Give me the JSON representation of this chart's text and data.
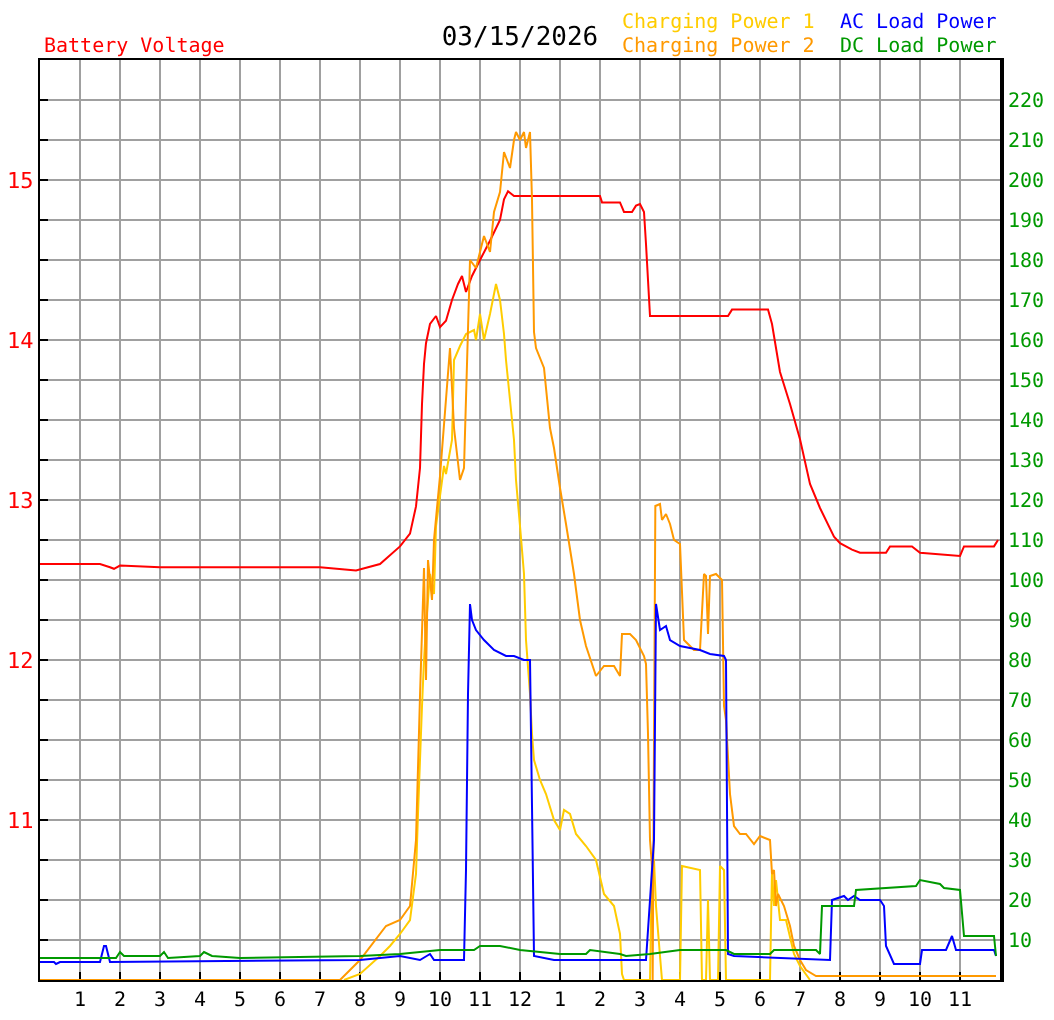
{
  "chart_data": {
    "type": "line",
    "title": "03/15/2026",
    "ylabel": "Battery Voltage",
    "xlim": [
      "2026-03-15T00:00",
      "2026-03-16T00:00"
    ],
    "xticks": [
      {
        "value": "2026-03-15T01:00",
        "label": "1"
      },
      {
        "value": "2026-03-15T02:00",
        "label": "2"
      },
      {
        "value": "2026-03-15T03:00",
        "label": "3"
      },
      {
        "value": "2026-03-15T04:00",
        "label": "4"
      },
      {
        "value": "2026-03-15T05:00",
        "label": "5"
      },
      {
        "value": "2026-03-15T06:00",
        "label": "6"
      },
      {
        "value": "2026-03-15T07:00",
        "label": "7"
      },
      {
        "value": "2026-03-15T08:00",
        "label": "8"
      },
      {
        "value": "2026-03-15T09:00",
        "label": "9"
      },
      {
        "value": "2026-03-15T10:00",
        "label": "10"
      },
      {
        "value": "2026-03-15T11:00",
        "label": "11"
      },
      {
        "value": "2026-03-15T12:00",
        "label": "12"
      },
      {
        "value": "2026-03-15T13:00",
        "label": "1"
      },
      {
        "value": "2026-03-15T14:00",
        "label": "2"
      },
      {
        "value": "2026-03-15T15:00",
        "label": "3"
      },
      {
        "value": "2026-03-15T16:00",
        "label": "4"
      },
      {
        "value": "2026-03-15T17:00",
        "label": "5"
      },
      {
        "value": "2026-03-15T18:00",
        "label": "6"
      },
      {
        "value": "2026-03-15T19:00",
        "label": "7"
      },
      {
        "value": "2026-03-15T20:00",
        "label": "8"
      },
      {
        "value": "2026-03-15T21:00",
        "label": "9"
      },
      {
        "value": "2026-03-15T22:00",
        "label": "10"
      },
      {
        "value": "2026-03-15T23:00",
        "label": "11"
      }
    ],
    "ylim": [
      10,
      15.75
    ],
    "yticks": [
      {
        "value": 10.25,
        "label": null
      },
      {
        "value": 10.5,
        "label": null
      },
      {
        "value": 10.75,
        "label": null
      },
      11,
      {
        "value": 11.25,
        "label": null
      },
      {
        "value": 11.5,
        "label": null
      },
      {
        "value": 11.75,
        "label": null
      },
      12,
      {
        "value": 12.25,
        "label": null
      },
      {
        "value": 12.5,
        "label": null
      },
      {
        "value": 12.75,
        "label": null
      },
      13,
      {
        "value": 13.25,
        "label": null
      },
      {
        "value": 13.5,
        "label": null
      },
      {
        "value": 13.75,
        "label": null
      },
      14,
      {
        "value": 14.25,
        "label": null
      },
      {
        "value": 14.5,
        "label": null
      },
      {
        "value": 14.75,
        "label": null
      },
      15,
      {
        "value": 15.25,
        "label": null
      },
      {
        "value": 15.5,
        "label": null
      }
    ],
    "y2lim": [
      0,
      230
    ],
    "y2ticks": [
      10,
      20,
      30,
      40,
      50,
      60,
      70,
      80,
      90,
      100,
      110,
      120,
      130,
      140,
      150,
      160,
      170,
      180,
      190,
      200,
      210,
      220
    ],
    "grid": true,
    "legend": "top right",
    "series": [
      {
        "color": "#ff0000",
        "axis": "y",
        "x": [
          "2026-03-15T00:00",
          "2026-03-15T01:30",
          "2026-03-15T01:45",
          "2026-03-15T01:51",
          "2026-03-15T02:00",
          "2026-03-15T03:00",
          "2026-03-15T07:00",
          "2026-03-15T07:54",
          "2026-03-15T08:30",
          "2026-03-15T09:00",
          "2026-03-15T09:15",
          "2026-03-15T09:24",
          "2026-03-15T09:30",
          "2026-03-15T09:33",
          "2026-03-15T09:36",
          "2026-03-15T09:39",
          "2026-03-15T09:45",
          "2026-03-15T09:54",
          "2026-03-15T10:00",
          "2026-03-15T10:09",
          "2026-03-15T10:18",
          "2026-03-15T10:27",
          "2026-03-15T10:33",
          "2026-03-15T10:39",
          "2026-03-15T10:48",
          "2026-03-15T11:00",
          "2026-03-15T11:15",
          "2026-03-15T11:30",
          "2026-03-15T11:36",
          "2026-03-15T11:42",
          "2026-03-15T11:51",
          "2026-03-15T14:00",
          "2026-03-15T14:03",
          "2026-03-15T14:30",
          "2026-03-15T14:36",
          "2026-03-15T14:48",
          "2026-03-15T14:54",
          "2026-03-15T15:00",
          "2026-03-15T15:06",
          "2026-03-15T15:09",
          "2026-03-15T15:15",
          "2026-03-15T17:12",
          "2026-03-15T17:18",
          "2026-03-15T18:12",
          "2026-03-15T18:18",
          "2026-03-15T18:30",
          "2026-03-15T18:45",
          "2026-03-15T19:00",
          "2026-03-15T19:15",
          "2026-03-15T19:30",
          "2026-03-15T19:51",
          "2026-03-15T20:00",
          "2026-03-15T20:18",
          "2026-03-15T20:30",
          "2026-03-15T21:09",
          "2026-03-15T21:15",
          "2026-03-15T21:48",
          "2026-03-15T22:00",
          "2026-03-15T23:00",
          "2026-03-15T23:06",
          "2026-03-15T23:51",
          "2026-03-15T23:57"
        ],
        "values": [
          12.6,
          12.6,
          12.58,
          12.57,
          12.59,
          12.58,
          12.58,
          12.56,
          12.6,
          12.71,
          12.79,
          12.96,
          13.2,
          13.6,
          13.85,
          13.98,
          14.1,
          14.15,
          14.08,
          14.12,
          14.25,
          14.35,
          14.4,
          14.3,
          14.4,
          14.5,
          14.62,
          14.75,
          14.88,
          14.93,
          14.9,
          14.9,
          14.86,
          14.86,
          14.8,
          14.8,
          14.84,
          14.85,
          14.8,
          14.6,
          14.15,
          14.15,
          14.19,
          14.19,
          14.1,
          13.8,
          13.6,
          13.38,
          13.1,
          12.95,
          12.77,
          12.73,
          12.69,
          12.67,
          12.67,
          12.71,
          12.71,
          12.67,
          12.65,
          12.71,
          12.71,
          12.75
        ]
      },
      {
        "name": "Charging Power 1",
        "color": "#ffcc00",
        "axis": "y2",
        "x": [
          "2026-03-15T07:36",
          "2026-03-15T08:00",
          "2026-03-15T08:30",
          "2026-03-15T08:45",
          "2026-03-15T09:00",
          "2026-03-15T09:15",
          "2026-03-15T09:24",
          "2026-03-15T09:27",
          "2026-03-15T09:33",
          "2026-03-15T09:36",
          "2026-03-15T09:39",
          "2026-03-15T09:45",
          "2026-03-15T09:51",
          "2026-03-15T09:54",
          "2026-03-15T10:06",
          "2026-03-15T10:09",
          "2026-03-15T10:18",
          "2026-03-15T10:21",
          "2026-03-15T10:30",
          "2026-03-15T10:39",
          "2026-03-15T10:51",
          "2026-03-15T10:54",
          "2026-03-15T11:00",
          "2026-03-15T11:06",
          "2026-03-15T11:15",
          "2026-03-15T11:21",
          "2026-03-15T11:24",
          "2026-03-15T11:30",
          "2026-03-15T11:36",
          "2026-03-15T11:39",
          "2026-03-15T11:45",
          "2026-03-15T11:51",
          "2026-03-15T11:54",
          "2026-03-15T12:00",
          "2026-03-15T12:06",
          "2026-03-15T12:09",
          "2026-03-15T12:15",
          "2026-03-15T12:18",
          "2026-03-15T12:21",
          "2026-03-15T12:30",
          "2026-03-15T12:39",
          "2026-03-15T12:51",
          "2026-03-15T13:00",
          "2026-03-15T13:06",
          "2026-03-15T13:15",
          "2026-03-15T13:24",
          "2026-03-15T13:39",
          "2026-03-15T13:54",
          "2026-03-15T14:06",
          "2026-03-15T14:21",
          "2026-03-15T14:30",
          "2026-03-15T14:33",
          "2026-03-15T14:36",
          "2026-03-15T15:15",
          "2026-03-15T15:18",
          "2026-03-15T15:21",
          "2026-03-15T15:24",
          "2026-03-15T15:30",
          "2026-03-15T15:33",
          "2026-03-15T16:00",
          "2026-03-15T16:03",
          "2026-03-15T16:30",
          "2026-03-15T16:33",
          "2026-03-15T16:39",
          "2026-03-15T16:42",
          "2026-03-15T16:45",
          "2026-03-15T16:57",
          "2026-03-15T17:00",
          "2026-03-15T17:06",
          "2026-03-15T17:09",
          "2026-03-15T18:15",
          "2026-03-15T18:18",
          "2026-03-15T18:21",
          "2026-03-15T18:24",
          "2026-03-15T18:30",
          "2026-03-15T18:39",
          "2026-03-15T18:51",
          "2026-03-15T19:00",
          "2026-03-15T19:15"
        ],
        "values": [
          0,
          1.5,
          6,
          8.5,
          11.5,
          15,
          26.5,
          41.5,
          68.5,
          80,
          88.5,
          101.5,
          96.5,
          113.5,
          128.5,
          126.5,
          135,
          155,
          158.5,
          161.5,
          162.5,
          160,
          166.5,
          160,
          166.5,
          171.5,
          174,
          170,
          161.5,
          155,
          145,
          135,
          125,
          113.5,
          101.5,
          85,
          71.5,
          61.5,
          55,
          50,
          46.5,
          40,
          37.5,
          42.5,
          41.5,
          36.5,
          33.5,
          30,
          21.5,
          18.5,
          11.5,
          1.5,
          0,
          0,
          30,
          30,
          18.5,
          6,
          0,
          0,
          28.5,
          27.5,
          0,
          0,
          20,
          0,
          0,
          28.5,
          27.5,
          0,
          0,
          27.5,
          18.5,
          25,
          15,
          15,
          6.5,
          3.5,
          0
        ]
      },
      {
        "name": "Charging Power 2",
        "color": "#ff9900",
        "axis": "y2",
        "x": [
          "2026-03-15T00:00",
          "2026-03-15T07:30",
          "2026-03-15T08:00",
          "2026-03-15T08:39",
          "2026-03-15T09:00",
          "2026-03-15T09:15",
          "2026-03-15T09:24",
          "2026-03-15T09:30",
          "2026-03-15T09:36",
          "2026-03-15T09:39",
          "2026-03-15T09:42",
          "2026-03-15T09:48",
          "2026-03-15T09:51",
          "2026-03-15T10:00",
          "2026-03-15T10:15",
          "2026-03-15T10:21",
          "2026-03-15T10:30",
          "2026-03-15T10:36",
          "2026-03-15T10:45",
          "2026-03-15T10:54",
          "2026-03-15T11:06",
          "2026-03-15T11:15",
          "2026-03-15T11:21",
          "2026-03-15T11:30",
          "2026-03-15T11:36",
          "2026-03-15T11:45",
          "2026-03-15T11:51",
          "2026-03-15T11:54",
          "2026-03-15T12:00",
          "2026-03-15T12:06",
          "2026-03-15T12:09",
          "2026-03-15T12:15",
          "2026-03-15T12:18",
          "2026-03-15T12:21",
          "2026-03-15T12:24",
          "2026-03-15T12:36",
          "2026-03-15T12:45",
          "2026-03-15T12:51",
          "2026-03-15T13:00",
          "2026-03-15T13:09",
          "2026-03-15T13:21",
          "2026-03-15T13:30",
          "2026-03-15T13:39",
          "2026-03-15T13:54",
          "2026-03-15T14:06",
          "2026-03-15T14:21",
          "2026-03-15T14:30",
          "2026-03-15T14:33",
          "2026-03-15T14:45",
          "2026-03-15T14:54",
          "2026-03-15T15:06",
          "2026-03-15T15:09",
          "2026-03-15T15:12",
          "2026-03-15T15:15",
          "2026-03-15T15:18",
          "2026-03-15T15:19",
          "2026-03-15T15:23",
          "2026-03-15T15:30",
          "2026-03-15T15:33",
          "2026-03-15T15:39",
          "2026-03-15T15:45",
          "2026-03-15T15:51",
          "2026-03-15T16:00",
          "2026-03-15T16:06",
          "2026-03-15T16:21",
          "2026-03-15T16:30",
          "2026-03-15T16:36",
          "2026-03-15T16:39",
          "2026-03-15T16:42",
          "2026-03-15T16:45",
          "2026-03-15T16:54",
          "2026-03-15T17:03",
          "2026-03-15T17:06",
          "2026-03-15T17:09",
          "2026-03-15T17:15",
          "2026-03-15T17:21",
          "2026-03-15T17:30",
          "2026-03-15T17:39",
          "2026-03-15T17:51",
          "2026-03-15T18:00",
          "2026-03-15T18:15",
          "2026-03-15T18:18",
          "2026-03-15T18:21",
          "2026-03-15T18:24",
          "2026-03-15T18:27",
          "2026-03-15T18:36",
          "2026-03-15T18:45",
          "2026-03-15T18:51",
          "2026-03-15T19:00",
          "2026-03-15T19:09",
          "2026-03-15T19:24",
          "2026-03-15T23:54"
        ],
        "values": [
          0,
          0,
          5,
          13.5,
          15,
          18.5,
          35,
          71,
          103,
          75,
          105,
          95,
          110,
          126,
          158,
          138,
          125,
          128,
          180,
          178,
          186,
          182,
          192,
          197,
          207,
          203,
          210,
          212,
          210,
          212,
          208,
          212,
          195,
          162,
          158,
          153,
          138,
          133,
          123,
          114,
          101.5,
          90,
          83.5,
          76,
          78.5,
          78.5,
          76,
          86.5,
          86.5,
          85,
          81,
          79,
          61.5,
          35,
          28.5,
          0,
          118.5,
          119,
          115,
          116.5,
          114,
          110,
          109,
          85,
          82.5,
          82.5,
          101.5,
          101,
          86.5,
          101,
          101.5,
          100,
          68.5,
          65,
          46.5,
          38.5,
          36.5,
          36.5,
          34,
          36,
          35,
          26.5,
          27.5,
          18.5,
          21.5,
          18.5,
          13.5,
          8.5,
          5,
          2.5,
          1,
          1
        ]
      },
      {
        "name": "AC Load Power",
        "color": "#0000ff",
        "axis": "y2",
        "x": [
          "2026-03-15T00:00",
          "2026-03-15T00:21",
          "2026-03-15T00:24",
          "2026-03-15T00:30",
          "2026-03-15T01:30",
          "2026-03-15T01:36",
          "2026-03-15T01:39",
          "2026-03-15T01:45",
          "2026-03-15T08:00",
          "2026-03-15T09:00",
          "2026-03-15T09:30",
          "2026-03-15T09:45",
          "2026-03-15T09:51",
          "2026-03-15T10:36",
          "2026-03-15T10:39",
          "2026-03-15T10:42",
          "2026-03-15T10:45",
          "2026-03-15T10:48",
          "2026-03-15T10:54",
          "2026-03-15T11:06",
          "2026-03-15T11:21",
          "2026-03-15T11:39",
          "2026-03-15T11:51",
          "2026-03-15T12:06",
          "2026-03-15T12:15",
          "2026-03-15T12:18",
          "2026-03-15T12:21",
          "2026-03-15T12:51",
          "2026-03-15T15:09",
          "2026-03-15T15:21",
          "2026-03-15T15:24",
          "2026-03-15T15:30",
          "2026-03-15T15:39",
          "2026-03-15T15:45",
          "2026-03-15T16:00",
          "2026-03-15T16:30",
          "2026-03-15T16:45",
          "2026-03-15T17:06",
          "2026-03-15T17:09",
          "2026-03-15T17:12",
          "2026-03-15T17:21",
          "2026-03-15T19:45",
          "2026-03-15T19:48",
          "2026-03-15T20:06",
          "2026-03-15T20:12",
          "2026-03-15T20:21",
          "2026-03-15T20:30",
          "2026-03-15T21:00",
          "2026-03-15T21:06",
          "2026-03-15T21:09",
          "2026-03-15T21:21",
          "2026-03-15T22:00",
          "2026-03-15T22:03",
          "2026-03-15T22:39",
          "2026-03-15T22:48",
          "2026-03-15T22:54",
          "2026-03-15T23:51",
          "2026-03-15T23:54"
        ],
        "values": [
          4.5,
          4.5,
          4,
          4.5,
          4.5,
          8.5,
          8.5,
          4.5,
          5,
          6,
          5,
          6.5,
          5,
          5,
          27.5,
          71.5,
          94,
          90,
          87.5,
          85,
          82.5,
          81,
          81,
          80,
          80,
          43.5,
          6,
          5,
          5,
          35,
          94,
          87.5,
          88.5,
          85,
          83.5,
          82.5,
          81.5,
          81,
          80,
          6.5,
          6,
          5,
          20,
          21,
          20,
          21,
          20,
          20,
          18.5,
          8.5,
          4,
          4,
          7.5,
          7.5,
          11,
          7.5,
          7.5,
          6
        ]
      },
      {
        "name": "DC Load Power",
        "color": "#009900",
        "axis": "y2",
        "x": [
          "2026-03-15T00:00",
          "2026-03-15T01:54",
          "2026-03-15T02:00",
          "2026-03-15T02:06",
          "2026-03-15T03:00",
          "2026-03-15T03:06",
          "2026-03-15T03:12",
          "2026-03-15T04:00",
          "2026-03-15T04:06",
          "2026-03-15T04:18",
          "2026-03-15T05:00",
          "2026-03-15T08:00",
          "2026-03-15T09:00",
          "2026-03-15T10:00",
          "2026-03-15T10:51",
          "2026-03-15T11:00",
          "2026-03-15T11:30",
          "2026-03-15T12:00",
          "2026-03-15T13:00",
          "2026-03-15T13:39",
          "2026-03-15T13:45",
          "2026-03-15T14:30",
          "2026-03-15T14:39",
          "2026-03-15T15:15",
          "2026-03-15T16:00",
          "2026-03-15T17:09",
          "2026-03-15T17:21",
          "2026-03-15T18:15",
          "2026-03-15T18:21",
          "2026-03-15T19:24",
          "2026-03-15T19:30",
          "2026-03-15T19:33",
          "2026-03-15T20:21",
          "2026-03-15T20:24",
          "2026-03-15T21:54",
          "2026-03-15T22:00",
          "2026-03-15T22:30",
          "2026-03-15T22:36",
          "2026-03-15T23:00",
          "2026-03-15T23:06",
          "2026-03-15T23:51",
          "2026-03-15T23:54"
        ],
        "values": [
          5.5,
          5.5,
          7,
          6,
          6,
          7,
          5.5,
          6,
          7,
          6,
          5.5,
          6,
          6.5,
          7.5,
          7.5,
          8.5,
          8.5,
          7.5,
          6.5,
          6.5,
          7.5,
          6.5,
          6,
          6.5,
          7.5,
          7.5,
          6.5,
          6.5,
          7.5,
          7.5,
          6.5,
          18.5,
          18.5,
          22.5,
          23.5,
          25,
          24,
          23,
          22.5,
          11,
          11,
          6
        ]
      }
    ]
  }
}
